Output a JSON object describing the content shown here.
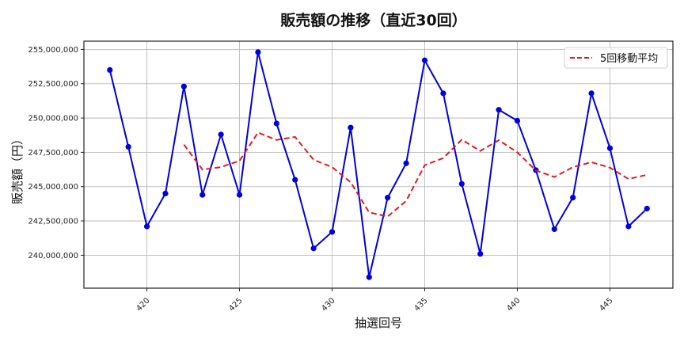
{
  "chart_data": {
    "type": "line",
    "title": "販売額の推移（直近30回）",
    "xlabel": "抽選回号",
    "ylabel": "販売額（円）",
    "x": [
      418,
      419,
      420,
      421,
      422,
      423,
      424,
      425,
      426,
      427,
      428,
      429,
      430,
      431,
      432,
      433,
      434,
      435,
      436,
      437,
      438,
      439,
      440,
      441,
      442,
      443,
      444,
      445,
      446,
      447
    ],
    "series": [
      {
        "name": "販売額",
        "color": "#0000dd",
        "style": "solid-marker",
        "in_legend": false,
        "values": [
          253500000,
          247900000,
          242100000,
          244500000,
          252300000,
          244400000,
          248800000,
          244400000,
          254800000,
          249600000,
          245500000,
          240500000,
          241700000,
          249300000,
          238400000,
          244200000,
          246700000,
          254200000,
          251800000,
          245200000,
          240100000,
          250600000,
          249800000,
          246200000,
          241900000,
          244200000,
          251800000,
          247800000,
          242100000,
          243400000
        ]
      },
      {
        "name": "5回移動平均",
        "color": "#e31a1c",
        "style": "dashed",
        "in_legend": true,
        "values": [
          null,
          null,
          null,
          null,
          248060000,
          246240000,
          246420000,
          246880000,
          248940000,
          248400000,
          248620000,
          246960000,
          246420000,
          245320000,
          243120000,
          242820000,
          243960000,
          246560000,
          247080000,
          248420000,
          247600000,
          248380000,
          247500000,
          246180000,
          245700000,
          246420000,
          246780000,
          246380000,
          245560000,
          245860000
        ]
      }
    ],
    "xticks": [
      420,
      425,
      430,
      435,
      440,
      445
    ],
    "yticks": [
      240000000,
      242500000,
      245000000,
      247500000,
      250000000,
      252500000,
      255000000
    ],
    "ytick_labels": [
      "240,000,000",
      "242,500,000",
      "245,000,000",
      "247,500,000",
      "250,000,000",
      "252,500,000",
      "255,000,000"
    ],
    "xlim": [
      416.6,
      448.4
    ],
    "ylim": [
      237600000,
      255600000
    ],
    "grid": true,
    "legend_position": "upper right"
  }
}
